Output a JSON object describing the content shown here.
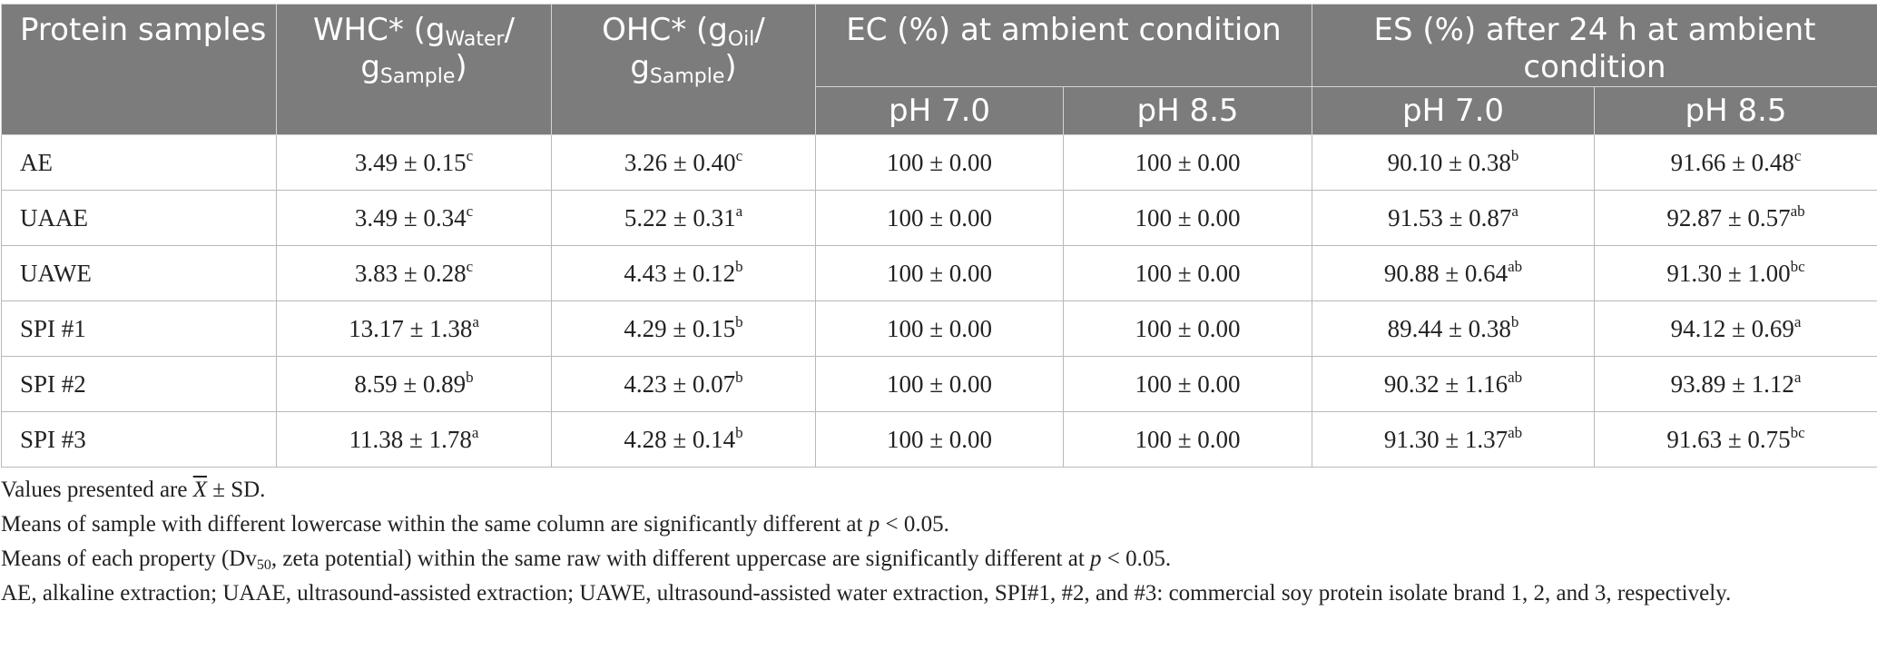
{
  "header": {
    "col1": "Protein samples",
    "whc": {
      "pre": "WHC* (g",
      "sub1": "Water",
      "mid": "/ g",
      "sub2": "Sample",
      "post": ")"
    },
    "ohc": {
      "pre": "OHC* (g",
      "sub1": "Oil",
      "mid": "/ g",
      "sub2": "Sample",
      "post": ")"
    },
    "ec": "EC (%) at ambient condition",
    "es": "ES (%) after 24 h at ambient condition",
    "ph1": "pH 7.0",
    "ph2": "pH 8.5",
    "ph3": "pH 7.0",
    "ph4": "pH 8.5"
  },
  "rows": [
    {
      "name": "AE",
      "cells": [
        {
          "v": "3.49 ± 0.15",
          "s": "c"
        },
        {
          "v": "3.26 ± 0.40",
          "s": "c"
        },
        {
          "v": "100 ± 0.00",
          "s": ""
        },
        {
          "v": "100 ± 0.00",
          "s": ""
        },
        {
          "v": "90.10 ± 0.38",
          "s": "b"
        },
        {
          "v": "91.66 ± 0.48",
          "s": "c"
        }
      ]
    },
    {
      "name": "UAAE",
      "cells": [
        {
          "v": "3.49 ± 0.34",
          "s": "c"
        },
        {
          "v": "5.22 ± 0.31",
          "s": "a"
        },
        {
          "v": "100 ± 0.00",
          "s": ""
        },
        {
          "v": "100 ± 0.00",
          "s": ""
        },
        {
          "v": "91.53 ± 0.87",
          "s": "a"
        },
        {
          "v": "92.87 ± 0.57",
          "s": "ab"
        }
      ]
    },
    {
      "name": "UAWE",
      "cells": [
        {
          "v": "3.83 ± 0.28",
          "s": "c"
        },
        {
          "v": "4.43 ± 0.12",
          "s": "b"
        },
        {
          "v": "100 ± 0.00",
          "s": ""
        },
        {
          "v": "100 ± 0.00",
          "s": ""
        },
        {
          "v": "90.88 ± 0.64",
          "s": "ab"
        },
        {
          "v": "91.30 ± 1.00",
          "s": "bc"
        }
      ]
    },
    {
      "name": "SPI #1",
      "cells": [
        {
          "v": "13.17 ± 1.38",
          "s": "a"
        },
        {
          "v": "4.29 ± 0.15",
          "s": "b"
        },
        {
          "v": "100 ± 0.00",
          "s": ""
        },
        {
          "v": "100 ± 0.00",
          "s": ""
        },
        {
          "v": "89.44 ± 0.38",
          "s": "b"
        },
        {
          "v": "94.12 ± 0.69",
          "s": "a"
        }
      ]
    },
    {
      "name": "SPI #2",
      "cells": [
        {
          "v": "8.59 ± 0.89",
          "s": "b"
        },
        {
          "v": "4.23 ± 0.07",
          "s": "b"
        },
        {
          "v": "100 ± 0.00",
          "s": ""
        },
        {
          "v": "100 ± 0.00",
          "s": ""
        },
        {
          "v": "90.32 ± 1.16",
          "s": "ab"
        },
        {
          "v": "93.89 ± 1.12",
          "s": "a"
        }
      ]
    },
    {
      "name": "SPI #3",
      "cells": [
        {
          "v": "11.38 ± 1.78",
          "s": "a"
        },
        {
          "v": "4.28 ± 0.14",
          "s": "b"
        },
        {
          "v": "100 ± 0.00",
          "s": ""
        },
        {
          "v": "100 ± 0.00",
          "s": ""
        },
        {
          "v": "91.30 ± 1.37",
          "s": "ab"
        },
        {
          "v": "91.63 ± 0.75",
          "s": "bc"
        }
      ]
    }
  ],
  "notes": {
    "n1_pre": "Values presented are ",
    "n1_sym": "X",
    "n1_post": " ± SD.",
    "n2_pre": "Means of sample with different lowercase within the same column are significantly different at ",
    "n2_p": "p",
    "n2_post": " < 0.05.",
    "n3_pre": "Means of each property (Dv",
    "n3_sub": "50",
    "n3_mid": ", zeta potential) within the same raw with different uppercase are significantly different at ",
    "n3_p": "p",
    "n3_post": " < 0.05.",
    "n4": "AE, alkaline extraction; UAAE, ultrasound-assisted extraction; UAWE, ultrasound-assisted water extraction, SPI#1, #2, and #3: commercial soy protein isolate brand 1, 2, and 3, respectively."
  },
  "colors": {
    "header_bg": "#7b7c7b",
    "header_text": "#ffffff",
    "border": "#b9b9b9"
  }
}
